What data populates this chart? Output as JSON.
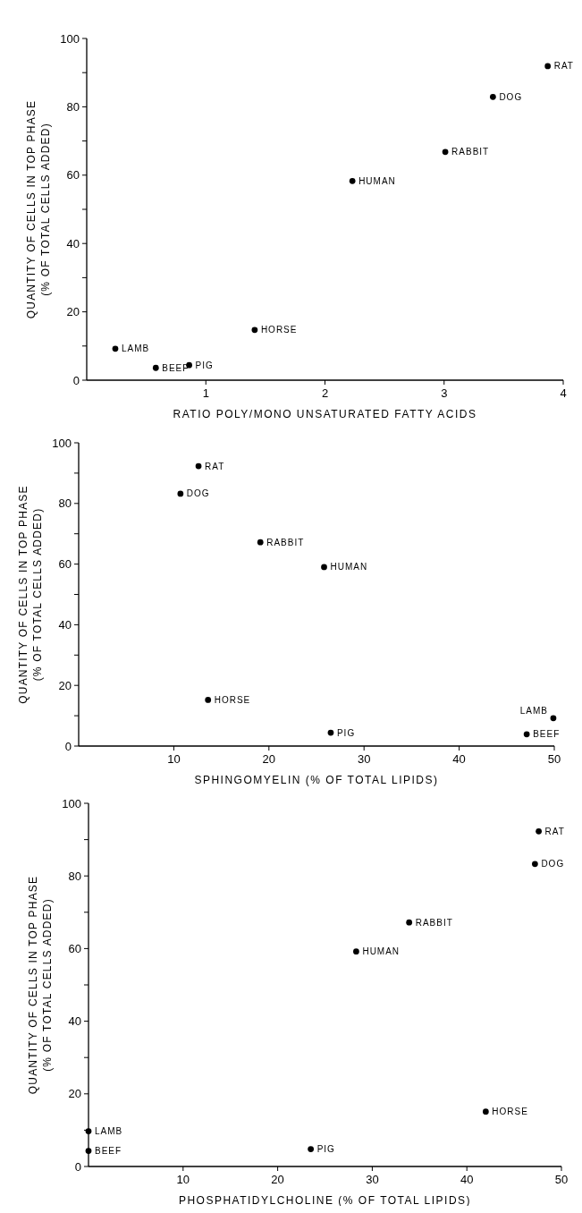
{
  "chart_data": [
    {
      "type": "scatter",
      "xlabel": "RATIO POLY/MONO UNSATURATED FATTY ACIDS",
      "ylabel": "QUANTITY OF CELLS IN TOP PHASE\n(% OF TOTAL CELLS ADDED)",
      "marker": "circle",
      "xlim": [
        0,
        4
      ],
      "xticks": [
        1,
        2,
        3,
        4
      ],
      "ylim": [
        0,
        100
      ],
      "yticks": [
        0,
        {
          "value": 10,
          "label": null
        },
        20,
        {
          "value": 30,
          "label": null
        },
        40,
        {
          "value": 50,
          "label": null
        },
        60,
        {
          "value": 70,
          "label": null
        },
        80,
        {
          "value": 90,
          "label": null
        },
        100
      ],
      "series": [
        {
          "color": "#000000",
          "x": [
            3.87,
            3.41,
            3.01,
            2.23,
            1.41,
            0.24,
            0.58,
            0.86
          ],
          "values": [
            91.9,
            82.9,
            66.8,
            58.3,
            14.7,
            9.2,
            3.6,
            4.4
          ]
        }
      ],
      "annotations": [
        {
          "text": "RAT",
          "x": 3.87,
          "y": 91.9
        },
        {
          "text": "DOG",
          "x": 3.41,
          "y": 82.9
        },
        {
          "text": "RABBIT",
          "x": 3.01,
          "y": 66.8
        },
        {
          "text": "HUMAN",
          "x": 2.23,
          "y": 58.3
        },
        {
          "text": "HORSE",
          "x": 1.41,
          "y": 14.7
        },
        {
          "text": "LAMB",
          "x": 0.24,
          "y": 9.2
        },
        {
          "text": "BEEF",
          "x": 0.58,
          "y": 3.6
        },
        {
          "text": "PIG",
          "x": 0.86,
          "y": 4.4
        }
      ]
    },
    {
      "type": "scatter",
      "xlabel": "SPHINGOMYELIN (% OF TOTAL LIPIDS)",
      "ylabel": "QUANTITY OF CELLS IN TOP PHASE\n(% OF TOTAL CELLS ADDED)",
      "marker": "circle",
      "xlim": [
        0,
        50
      ],
      "xticks": [
        10,
        20,
        30,
        40,
        50
      ],
      "ylim": [
        0,
        100
      ],
      "yticks": [
        0,
        {
          "value": 10,
          "label": null
        },
        20,
        {
          "value": 30,
          "label": null
        },
        40,
        {
          "value": 50,
          "label": null
        },
        60,
        {
          "value": 70,
          "label": null
        },
        80,
        {
          "value": 90,
          "label": null
        },
        100
      ],
      "series": [
        {
          "color": "#000000",
          "x": [
            12.6,
            10.7,
            19.1,
            25.8,
            13.6,
            26.5,
            49.9,
            47.1
          ],
          "values": [
            92.3,
            83.2,
            67.2,
            59.0,
            15.2,
            4.4,
            9.2,
            3.9
          ]
        }
      ],
      "annotations": [
        {
          "text": "RAT",
          "x": 12.6,
          "y": 92.3
        },
        {
          "text": "DOG",
          "x": 10.7,
          "y": 83.2
        },
        {
          "text": "RABBIT",
          "x": 19.1,
          "y": 67.2
        },
        {
          "text": "HUMAN",
          "x": 25.8,
          "y": 59.0
        },
        {
          "text": "HORSE",
          "x": 13.6,
          "y": 15.2
        },
        {
          "text": "PIG",
          "x": 26.5,
          "y": 4.4
        },
        {
          "text": "LAMB",
          "x": 49.9,
          "y": 9.2
        },
        {
          "text": "BEEF",
          "x": 47.1,
          "y": 3.9
        }
      ]
    },
    {
      "type": "scatter",
      "xlabel": "PHOSPHATIDYLCHOLINE (% OF TOTAL LIPIDS)",
      "ylabel": "QUANTITY OF CELLS IN TOP PHASE\n(% OF TOTAL CELLS ADDED)",
      "marker": "circle",
      "xlim": [
        0,
        50
      ],
      "xticks": [
        10,
        20,
        30,
        40,
        50
      ],
      "ylim": [
        0,
        100
      ],
      "yticks": [
        0,
        {
          "value": 10,
          "label": null
        },
        20,
        {
          "value": 30,
          "label": null
        },
        40,
        {
          "value": 50,
          "label": null
        },
        60,
        {
          "value": 70,
          "label": null
        },
        80,
        {
          "value": 90,
          "label": null
        },
        100
      ],
      "series": [
        {
          "color": "#000000",
          "x": [
            47.6,
            47.2,
            33.9,
            28.3,
            42.0,
            23.5,
            0,
            0
          ],
          "values": [
            92.3,
            83.3,
            67.2,
            59.2,
            15.1,
            4.8,
            9.7,
            4.3
          ]
        }
      ],
      "annotations": [
        {
          "text": "RAT",
          "x": 47.6,
          "y": 92.3
        },
        {
          "text": "DOG",
          "x": 47.2,
          "y": 83.3
        },
        {
          "text": "RABBIT",
          "x": 33.9,
          "y": 67.2
        },
        {
          "text": "HUMAN",
          "x": 28.3,
          "y": 59.2
        },
        {
          "text": "HORSE",
          "x": 42.0,
          "y": 15.1
        },
        {
          "text": "PIG",
          "x": 23.5,
          "y": 4.8
        },
        {
          "text": "LAMB",
          "x": 0,
          "y": 9.7
        },
        {
          "text": "BEEF",
          "x": 0,
          "y": 4.3
        }
      ]
    }
  ]
}
